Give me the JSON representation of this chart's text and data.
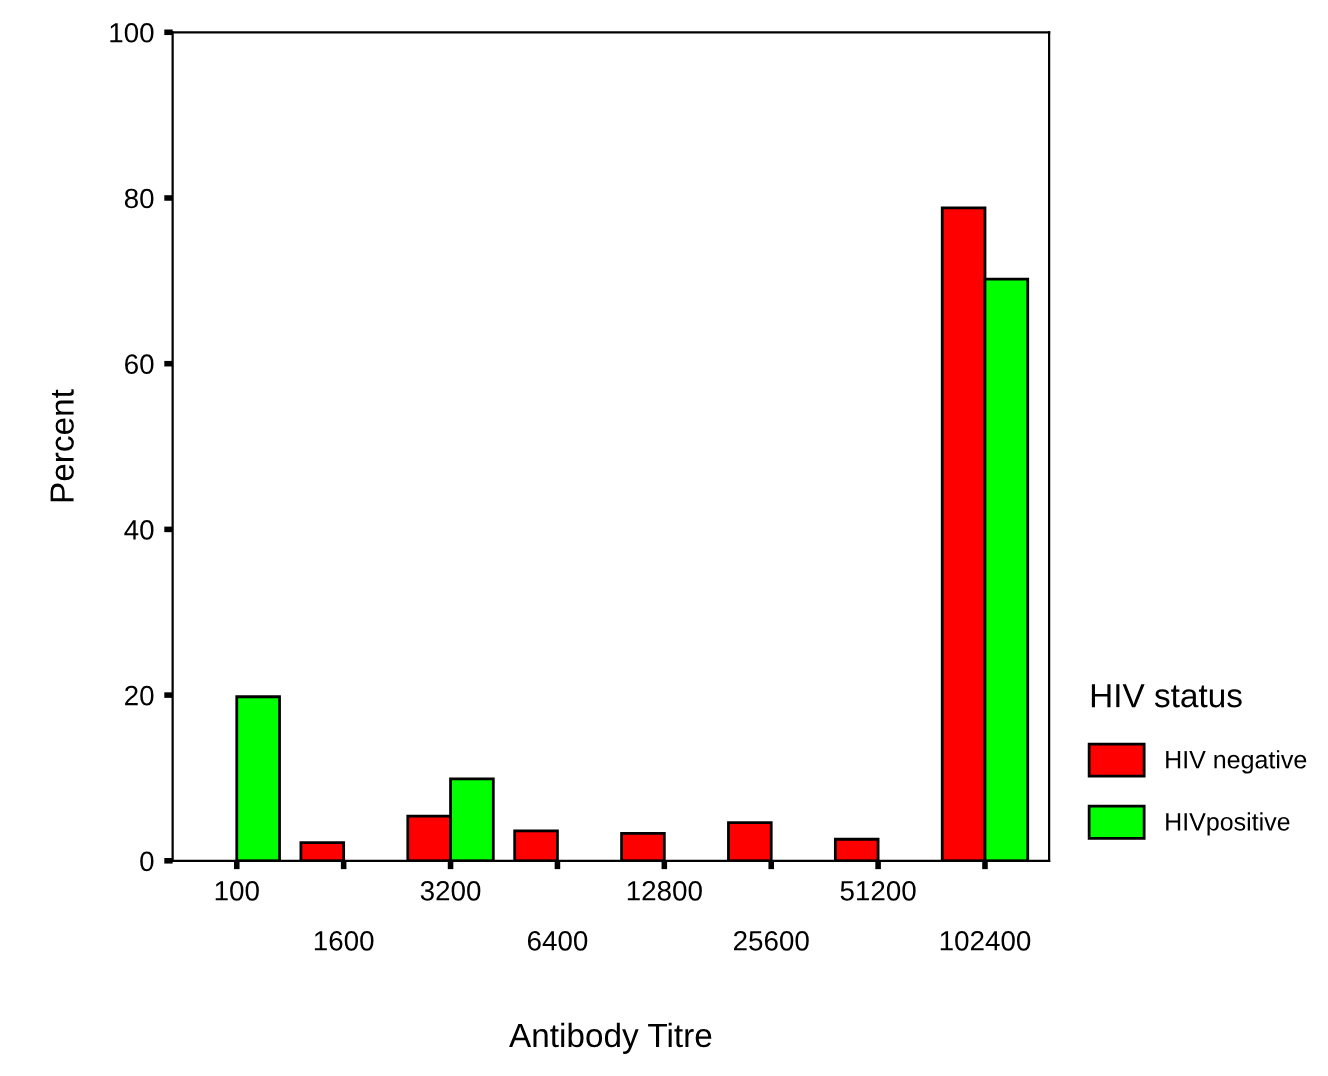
{
  "chart_data": {
    "type": "bar",
    "xlabel": "Antibody Titre",
    "ylabel": "Percent",
    "legend_title": "HIV status",
    "legend": "right",
    "categories": [
      "100",
      "1600",
      "3200",
      "6400",
      "12800",
      "25600",
      "51200",
      "102400"
    ],
    "series": [
      {
        "name": "HIV negative",
        "color": "#ff0000",
        "values": [
          null,
          2.2,
          5.4,
          3.6,
          3.3,
          4.6,
          2.6,
          78.8
        ]
      },
      {
        "name": "HIVpositive",
        "color": "#00ff00",
        "values": [
          19.8,
          null,
          9.9,
          null,
          null,
          null,
          null,
          70.2
        ]
      }
    ],
    "ylim": [
      0,
      100
    ],
    "yticks": [
      0,
      20,
      40,
      60,
      80,
      100
    ],
    "grid": false
  }
}
